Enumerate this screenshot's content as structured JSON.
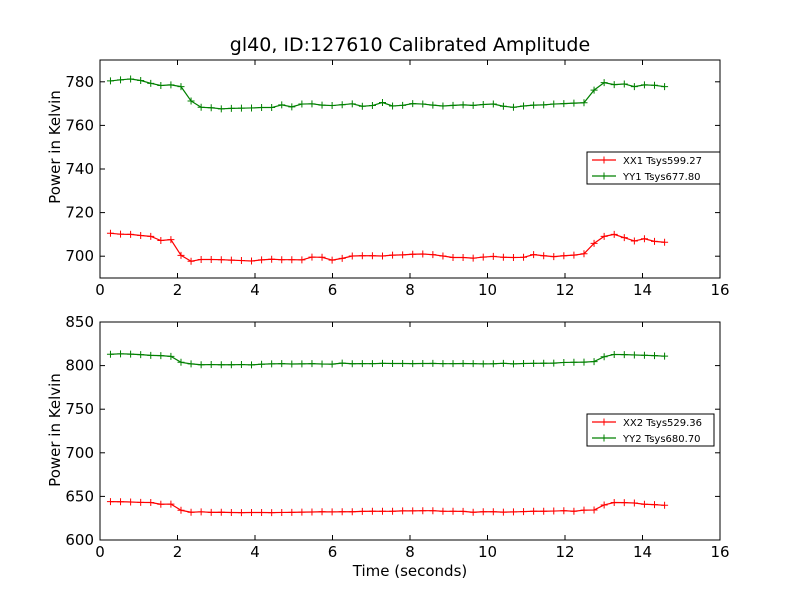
{
  "title": "gl40, ID:127610 Calibrated Amplitude",
  "colors": {
    "xx": "#ff0000",
    "yy": "#008000",
    "axis": "#000000"
  },
  "chart_data": [
    {
      "type": "line",
      "title": "gl40, ID:127610 Calibrated Amplitude",
      "xlabel": "",
      "ylabel": "Power in Kelvin",
      "xlim": [
        0,
        16
      ],
      "ylim": [
        690,
        790
      ],
      "xticks": [
        0,
        2,
        4,
        6,
        8,
        10,
        12,
        14,
        16
      ],
      "yticks": [
        700,
        720,
        740,
        760,
        780
      ],
      "grid": false,
      "legend_position": "right",
      "x": [
        0.27,
        0.53,
        0.79,
        1.05,
        1.31,
        1.57,
        1.83,
        2.09,
        2.35,
        2.61,
        2.87,
        3.13,
        3.39,
        3.65,
        3.91,
        4.17,
        4.43,
        4.69,
        4.95,
        5.21,
        5.47,
        5.73,
        5.99,
        6.25,
        6.51,
        6.77,
        7.03,
        7.29,
        7.55,
        7.81,
        8.07,
        8.33,
        8.59,
        8.85,
        9.11,
        9.37,
        9.63,
        9.89,
        10.15,
        10.41,
        10.67,
        10.93,
        11.19,
        11.45,
        11.71,
        11.97,
        12.23,
        12.49,
        12.75,
        13.01,
        13.27,
        13.53,
        13.79,
        14.05,
        14.31,
        14.57
      ],
      "series": [
        {
          "name": "XX1 Tsys599.27",
          "color": "#ff0000",
          "values": [
            710.5,
            710.1,
            710.0,
            709.5,
            709.1,
            707.2,
            707.6,
            700.4,
            697.7,
            698.5,
            698.5,
            698.4,
            698.2,
            698.0,
            697.8,
            698.3,
            698.6,
            698.4,
            698.4,
            698.3,
            699.6,
            699.5,
            698.2,
            699.0,
            700.1,
            700.2,
            700.2,
            700.1,
            700.5,
            700.6,
            700.9,
            701.0,
            700.7,
            700.1,
            699.4,
            699.4,
            699.1,
            699.6,
            699.9,
            699.5,
            699.4,
            699.5,
            700.7,
            700.2,
            699.8,
            700.2,
            700.5,
            701.1,
            705.9,
            709.1,
            710.0,
            708.5,
            707.0,
            708.0,
            706.8,
            706.4
          ]
        },
        {
          "name": "YY1 Tsys677.80",
          "color": "#008000",
          "values": [
            780.4,
            780.9,
            781.3,
            780.6,
            779.3,
            778.3,
            778.6,
            777.8,
            771.2,
            768.3,
            768.1,
            767.6,
            767.8,
            767.9,
            768.0,
            768.2,
            768.2,
            769.4,
            768.5,
            769.8,
            769.9,
            769.3,
            769.1,
            769.5,
            769.9,
            768.8,
            769.1,
            770.5,
            768.9,
            769.2,
            770.0,
            769.8,
            769.3,
            768.9,
            769.2,
            769.4,
            769.2,
            769.6,
            769.8,
            768.8,
            768.3,
            768.9,
            769.3,
            769.4,
            769.8,
            770.0,
            770.2,
            770.4,
            776.2,
            779.6,
            778.7,
            779.0,
            777.8,
            778.6,
            778.4,
            777.8
          ]
        }
      ]
    },
    {
      "type": "line",
      "title": "",
      "xlabel": "Time (seconds)",
      "ylabel": "Power in Kelvin",
      "xlim": [
        0,
        16
      ],
      "ylim": [
        600,
        850
      ],
      "xticks": [
        0,
        2,
        4,
        6,
        8,
        10,
        12,
        14,
        16
      ],
      "yticks": [
        600,
        650,
        700,
        750,
        800,
        850
      ],
      "grid": false,
      "legend_position": "right",
      "x": [
        0.27,
        0.53,
        0.79,
        1.05,
        1.31,
        1.57,
        1.83,
        2.09,
        2.35,
        2.61,
        2.87,
        3.13,
        3.39,
        3.65,
        3.91,
        4.17,
        4.43,
        4.69,
        4.95,
        5.21,
        5.47,
        5.73,
        5.99,
        6.25,
        6.51,
        6.77,
        7.03,
        7.29,
        7.55,
        7.81,
        8.07,
        8.33,
        8.59,
        8.85,
        9.11,
        9.37,
        9.63,
        9.89,
        10.15,
        10.41,
        10.67,
        10.93,
        11.19,
        11.45,
        11.71,
        11.97,
        12.23,
        12.49,
        12.75,
        13.01,
        13.27,
        13.53,
        13.79,
        14.05,
        14.31,
        14.57
      ],
      "series": [
        {
          "name": "XX2 Tsys529.36",
          "color": "#ff0000",
          "values": [
            644.0,
            643.9,
            643.6,
            643.1,
            643.0,
            641.0,
            641.2,
            634.1,
            631.8,
            632.3,
            631.7,
            631.8,
            631.5,
            631.4,
            631.5,
            631.5,
            631.4,
            631.6,
            631.7,
            632.0,
            632.1,
            632.4,
            632.2,
            632.4,
            632.4,
            632.8,
            633.0,
            632.9,
            633.0,
            633.4,
            633.4,
            633.6,
            633.6,
            633.0,
            632.9,
            632.8,
            631.8,
            632.4,
            632.4,
            632.0,
            632.2,
            632.6,
            633.0,
            633.0,
            633.2,
            633.6,
            633.0,
            634.2,
            634.4,
            640.2,
            643.0,
            642.9,
            642.4,
            641.0,
            640.6,
            639.8
          ]
        },
        {
          "name": "YY2 Tsys680.70",
          "color": "#008000",
          "values": [
            813.0,
            813.5,
            813.2,
            812.6,
            811.7,
            811.4,
            810.6,
            803.8,
            802.0,
            801.0,
            801.2,
            801.0,
            801.0,
            801.2,
            800.8,
            801.6,
            802.0,
            802.2,
            801.8,
            802.0,
            802.2,
            801.8,
            801.7,
            802.8,
            802.1,
            802.3,
            802.2,
            802.6,
            802.4,
            802.4,
            802.3,
            802.4,
            802.5,
            802.2,
            802.2,
            802.4,
            802.2,
            802.0,
            802.1,
            802.6,
            802.0,
            802.4,
            802.6,
            802.7,
            802.8,
            803.6,
            803.8,
            804.0,
            804.6,
            810.2,
            812.8,
            812.6,
            812.2,
            811.8,
            811.4,
            810.8
          ]
        }
      ]
    }
  ]
}
